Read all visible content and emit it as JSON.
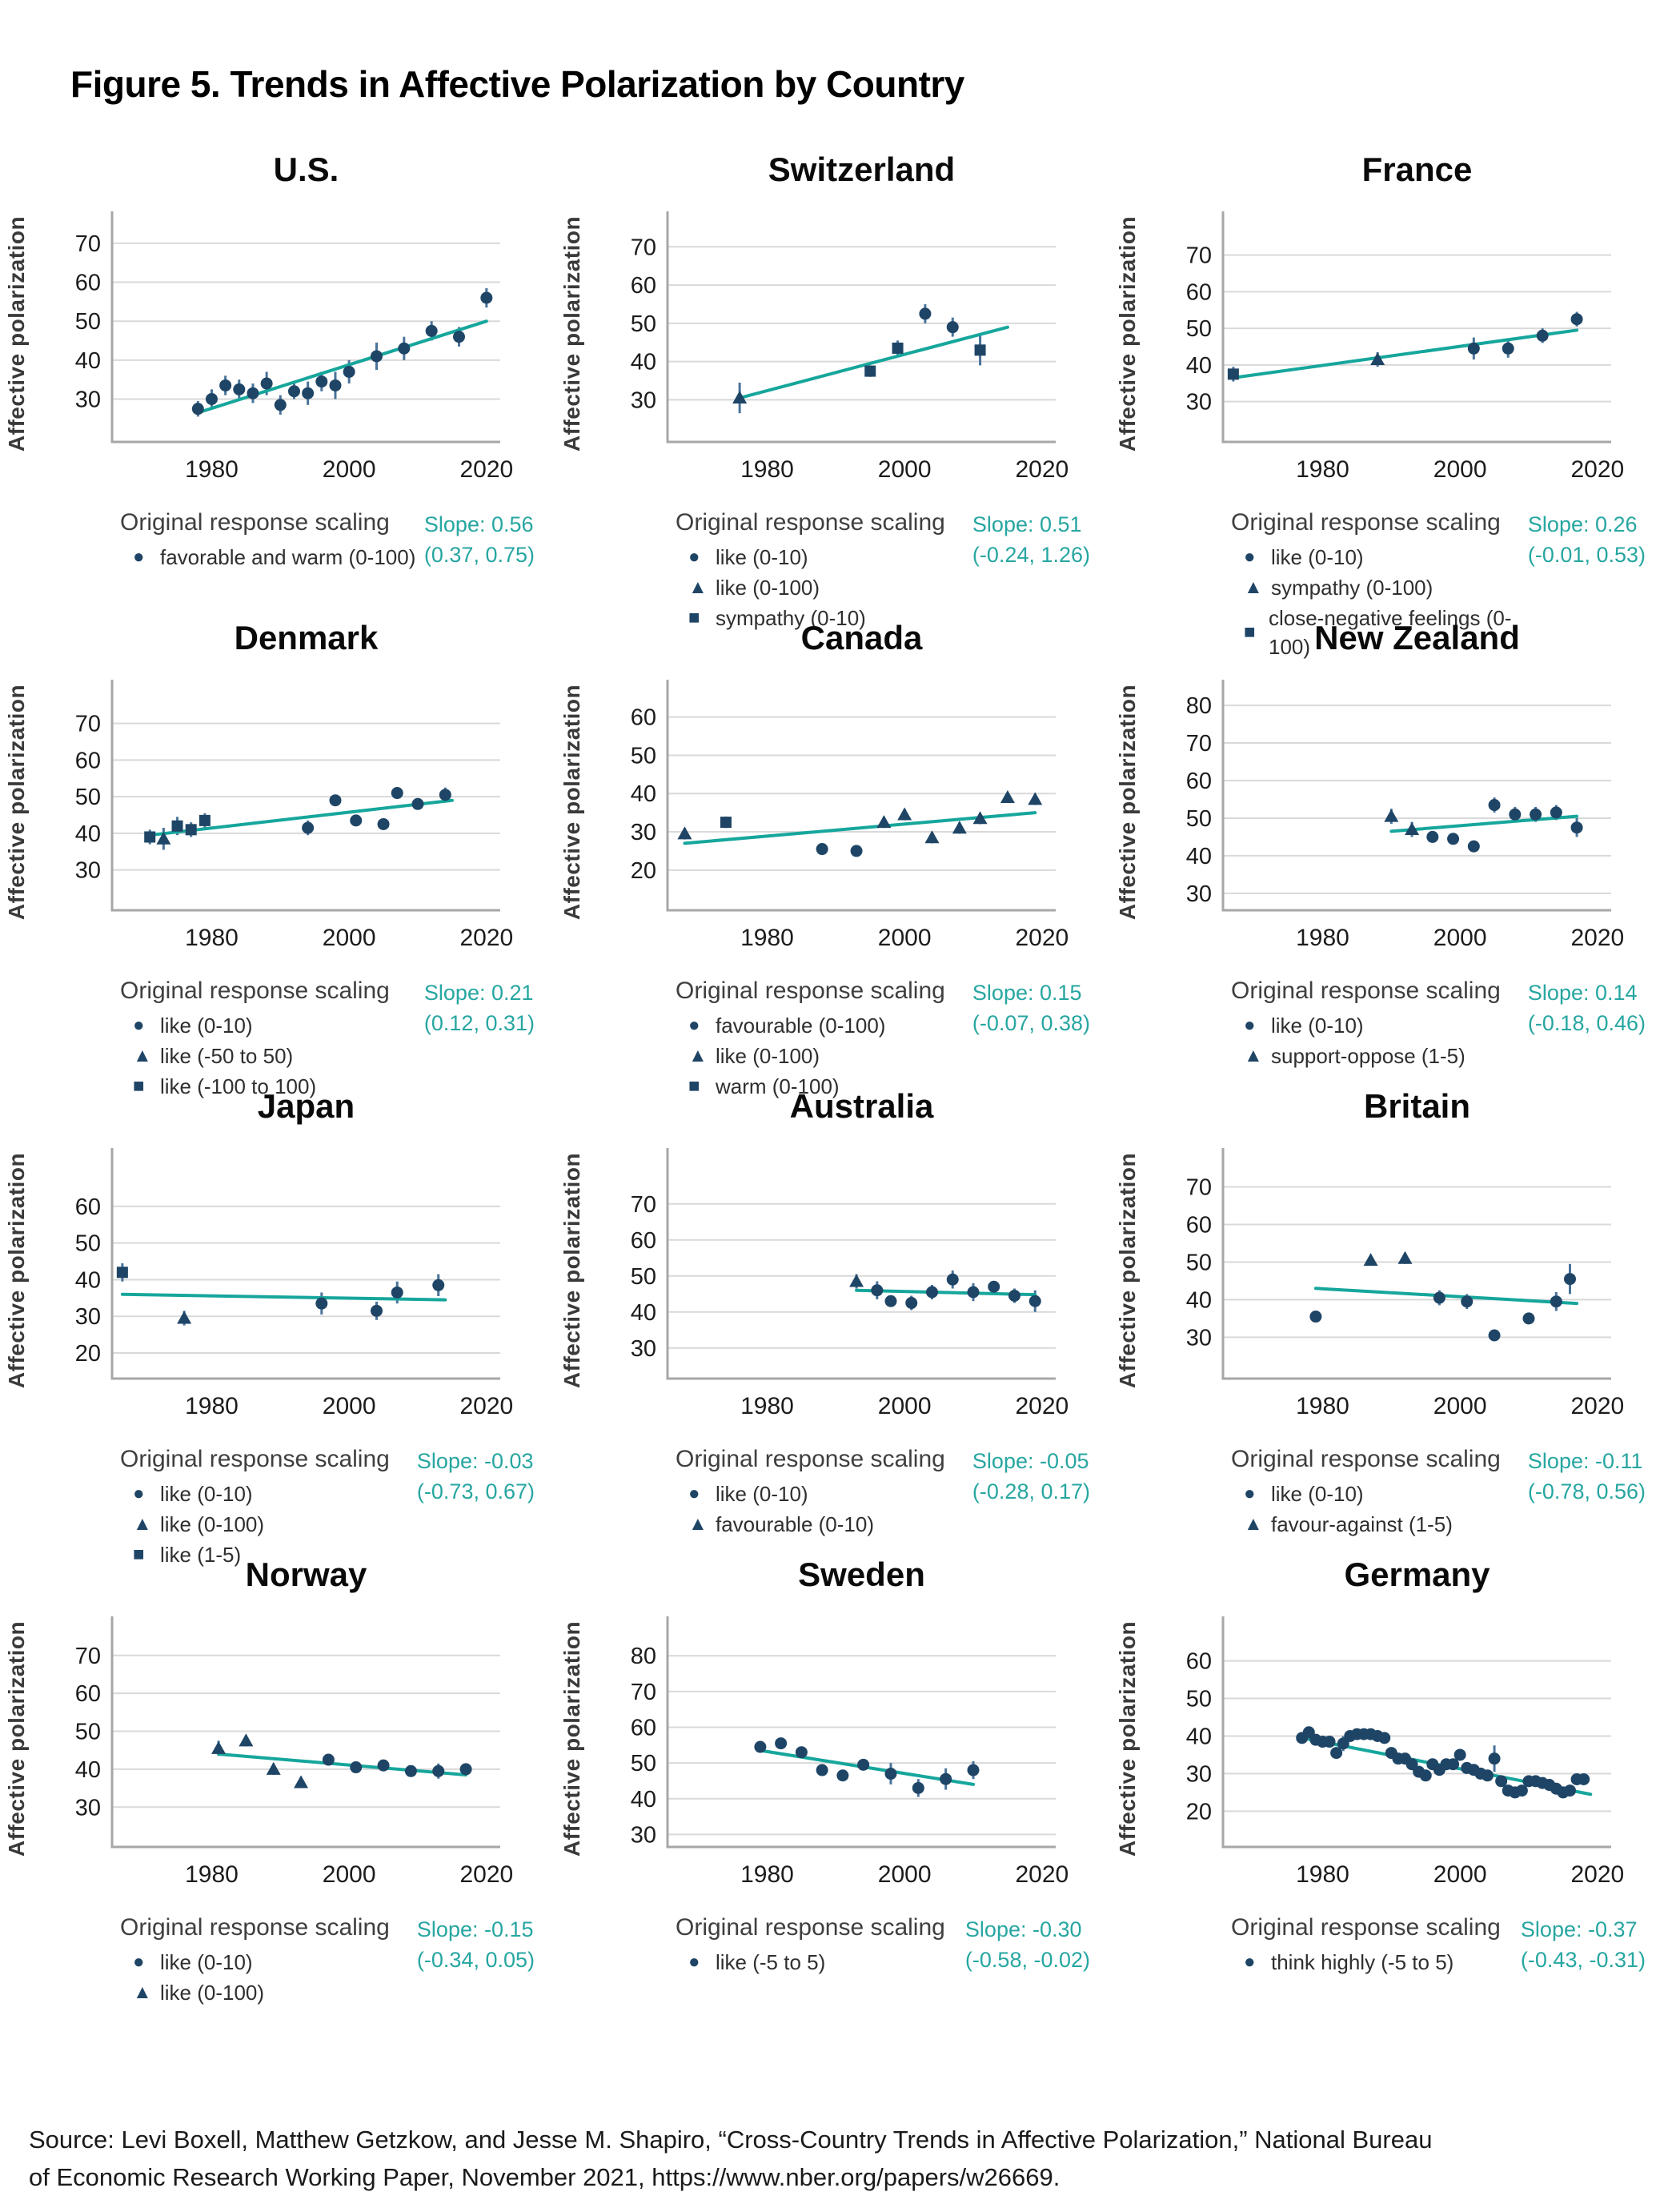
{
  "page": {
    "title": "Figure 5. Trends in Affective Polarization by Country",
    "source": [
      "Source: Levi Boxell, Matthew Getzkow, and Jesse M. Shapiro, “Cross-Country Trends in Affective Polarization,” National Bureau",
      "of Economic Research Working Paper, November 2021, https://www.nber.org/papers/w26669."
    ]
  },
  "colors": {
    "point_navy": "#1f4566",
    "error_bar": "#49739a",
    "trend_teal": "#16a69c",
    "slope_text": "#27a6a1",
    "gridline": "#d9d9d9",
    "spine": "#a7a7a7",
    "tick_text": "#1c1c1c"
  },
  "legend": {
    "heading": "Original response scaling",
    "glyphs": {
      "circle": "●",
      "triangle": "▲",
      "square": "■"
    }
  },
  "ylabel": "Affective polarization",
  "points_format": "[year, value, half_error, marker(default circle)]",
  "chart_data": [
    {
      "type": "scatter",
      "title": "U.S.",
      "xlim": [
        1965.5,
        2022
      ],
      "xticks": [
        1980,
        2000,
        2020
      ],
      "ylim": [
        19,
        74.5
      ],
      "yticks": [
        30,
        40,
        50,
        60,
        70
      ],
      "slope": "Slope: 0.56",
      "slope_ci": "(0.37, 0.75)",
      "trend": [
        1978,
        26.5,
        2020,
        50
      ],
      "legend": [
        {
          "marker": "circle",
          "label": "favorable and warm (0-100)"
        }
      ],
      "points": [
        [
          1978,
          27.5,
          2
        ],
        [
          1980,
          30,
          2.5
        ],
        [
          1982,
          33.5,
          2.5
        ],
        [
          1984,
          32.5,
          2.5
        ],
        [
          1986,
          31.5,
          2.5
        ],
        [
          1988,
          34,
          3
        ],
        [
          1990,
          28.5,
          2.5
        ],
        [
          1992,
          32,
          2
        ],
        [
          1994,
          31.5,
          3
        ],
        [
          1996,
          34.5,
          2.5
        ],
        [
          1998,
          33.5,
          3.5
        ],
        [
          2000,
          37,
          3
        ],
        [
          2004,
          41,
          3.5
        ],
        [
          2008,
          43,
          3
        ],
        [
          2012,
          47.5,
          2.5
        ],
        [
          2016,
          46,
          2.5
        ],
        [
          2020,
          56,
          2.5
        ]
      ]
    },
    {
      "type": "scatter",
      "title": "Switzerland",
      "xlim": [
        1965.5,
        2022
      ],
      "xticks": [
        1980,
        2000,
        2020
      ],
      "ylim": [
        19,
        75.5
      ],
      "yticks": [
        30,
        40,
        50,
        60,
        70
      ],
      "slope": "Slope: 0.51",
      "slope_ci": "(-0.24, 1.26)",
      "trend": [
        1976,
        30.5,
        2015,
        49
      ],
      "legend": [
        {
          "marker": "circle",
          "label": "like (0-10)"
        },
        {
          "marker": "triangle",
          "label": "like (0-100)"
        },
        {
          "marker": "square",
          "label": "sympathy (0-10)"
        }
      ],
      "points": [
        [
          1976,
          30.5,
          4,
          "triangle"
        ],
        [
          1995,
          37.5,
          1.5,
          "square"
        ],
        [
          1999,
          43.5,
          2,
          "square"
        ],
        [
          2003,
          52.5,
          2.5
        ],
        [
          2007,
          49,
          2.5
        ],
        [
          2011,
          43,
          4,
          "square"
        ]
      ]
    },
    {
      "type": "scatter",
      "title": "France",
      "xlim": [
        1965.5,
        2022
      ],
      "xticks": [
        1980,
        2000,
        2020
      ],
      "ylim": [
        19,
        78
      ],
      "yticks": [
        30,
        40,
        50,
        60,
        70
      ],
      "slope": "Slope: 0.26",
      "slope_ci": "(-0.01, 0.53)",
      "trend": [
        1967,
        36.5,
        2017,
        49.5
      ],
      "legend": [
        {
          "marker": "circle",
          "label": "like (0-10)"
        },
        {
          "marker": "triangle",
          "label": "sympathy (0-100)"
        },
        {
          "marker": "square",
          "label": "close-negative feelings (0-100)"
        }
      ],
      "points": [
        [
          1967,
          37.5,
          2,
          "square"
        ],
        [
          1988,
          41.5,
          2,
          "triangle"
        ],
        [
          2002,
          44.5,
          3
        ],
        [
          2007,
          44.5,
          2.5
        ],
        [
          2012,
          48,
          2
        ],
        [
          2017,
          52.5,
          2
        ]
      ]
    },
    {
      "type": "scatter",
      "title": "Denmark",
      "xlim": [
        1965.5,
        2022
      ],
      "xticks": [
        1980,
        2000,
        2020
      ],
      "ylim": [
        19,
        78
      ],
      "yticks": [
        30,
        40,
        50,
        60,
        70
      ],
      "slope": "Slope: 0.21",
      "slope_ci": "(0.12, 0.31)",
      "trend": [
        1971,
        39.5,
        2015,
        49
      ],
      "legend": [
        {
          "marker": "circle",
          "label": "like (0-10)"
        },
        {
          "marker": "triangle",
          "label": "like (-50 to 50)"
        },
        {
          "marker": "square",
          "label": "like (-100 to 100)"
        }
      ],
      "points": [
        [
          1971,
          39,
          2,
          "square"
        ],
        [
          1973,
          38.5,
          3,
          "triangle"
        ],
        [
          1975,
          42,
          2.5,
          "square"
        ],
        [
          1977,
          41,
          2,
          "square"
        ],
        [
          1979,
          43.5,
          2,
          "square"
        ],
        [
          1994,
          41.5,
          2
        ],
        [
          1998,
          49,
          1.5
        ],
        [
          2001,
          43.5,
          1.5
        ],
        [
          2005,
          42.5,
          1.5
        ],
        [
          2007,
          51,
          1
        ],
        [
          2010,
          48,
          1.5
        ],
        [
          2014,
          50.5,
          2
        ]
      ]
    },
    {
      "type": "scatter",
      "title": "Canada",
      "xlim": [
        1965.5,
        2022
      ],
      "xticks": [
        1980,
        2000,
        2020
      ],
      "ylim": [
        9.5,
        66
      ],
      "yticks": [
        20,
        30,
        40,
        50,
        60
      ],
      "slope": "Slope: 0.15",
      "slope_ci": "(-0.07, 0.38)",
      "trend": [
        1968,
        27,
        2019,
        35
      ],
      "legend": [
        {
          "marker": "circle",
          "label": "favourable (0-100)"
        },
        {
          "marker": "triangle",
          "label": "like (0-100)"
        },
        {
          "marker": "square",
          "label": "warm (0-100)"
        }
      ],
      "points": [
        [
          1968,
          29.5,
          1.5,
          "triangle"
        ],
        [
          1974,
          32.5,
          1.5,
          "square"
        ],
        [
          1988,
          25.5,
          1.5
        ],
        [
          1993,
          25,
          1
        ],
        [
          1997,
          32.5,
          1.5,
          "triangle"
        ],
        [
          2000,
          34.5,
          1.5,
          "triangle"
        ],
        [
          2004,
          28.5,
          1.5,
          "triangle"
        ],
        [
          2008,
          31,
          1.5,
          "triangle"
        ],
        [
          2011,
          33.5,
          1.5,
          "triangle"
        ],
        [
          2015,
          39,
          1,
          "triangle"
        ],
        [
          2019,
          38.5,
          1.5,
          "triangle"
        ]
      ]
    },
    {
      "type": "scatter",
      "title": "New Zealand",
      "xlim": [
        1965.5,
        2022
      ],
      "xticks": [
        1980,
        2000,
        2020
      ],
      "ylim": [
        25.5,
        83
      ],
      "yticks": [
        30,
        40,
        50,
        60,
        70,
        80
      ],
      "slope": "Slope: 0.14",
      "slope_ci": "(-0.18, 0.46)",
      "trend": [
        1990,
        46.5,
        2017,
        50.5
      ],
      "legend": [
        {
          "marker": "circle",
          "label": "like (0-10)"
        },
        {
          "marker": "triangle",
          "label": "support-oppose (1-5)"
        }
      ],
      "points": [
        [
          1990,
          50.5,
          2,
          "triangle"
        ],
        [
          1993,
          47,
          2,
          "triangle"
        ],
        [
          1996,
          45,
          1
        ],
        [
          1999,
          44.5,
          1
        ],
        [
          2002,
          42.5,
          1.5
        ],
        [
          2005,
          53.5,
          2
        ],
        [
          2008,
          51,
          2
        ],
        [
          2011,
          51,
          2
        ],
        [
          2014,
          51.5,
          2
        ],
        [
          2017,
          47.5,
          2.5
        ]
      ]
    },
    {
      "type": "scatter",
      "title": "Japan",
      "xlim": [
        1965.5,
        2022
      ],
      "xticks": [
        1980,
        2000,
        2020
      ],
      "ylim": [
        13,
        72
      ],
      "yticks": [
        20,
        30,
        40,
        50,
        60
      ],
      "slope": "Slope: -0.03",
      "slope_ci": "(-0.73, 0.67)",
      "trend": [
        1967,
        36,
        2014,
        34.5
      ],
      "legend": [
        {
          "marker": "circle",
          "label": "like (0-10)"
        },
        {
          "marker": "triangle",
          "label": "like (0-100)"
        },
        {
          "marker": "square",
          "label": "like (1-5)"
        }
      ],
      "points": [
        [
          1967,
          42,
          2.5,
          "square"
        ],
        [
          1976,
          29.5,
          2,
          "triangle"
        ],
        [
          1996,
          33.5,
          3
        ],
        [
          2004,
          31.5,
          2.5
        ],
        [
          2007,
          36.5,
          3
        ],
        [
          2013,
          38.5,
          3
        ]
      ]
    },
    {
      "type": "scatter",
      "title": "Australia",
      "xlim": [
        1965.5,
        2022
      ],
      "xticks": [
        1980,
        2000,
        2020
      ],
      "ylim": [
        21.5,
        81.5
      ],
      "yticks": [
        30,
        40,
        50,
        60,
        70
      ],
      "slope": "Slope: -0.05",
      "slope_ci": "(-0.28, 0.17)",
      "trend": [
        1993,
        46,
        2019,
        44.8
      ],
      "legend": [
        {
          "marker": "circle",
          "label": "like (0-10)"
        },
        {
          "marker": "triangle",
          "label": "favourable (0-10)"
        }
      ],
      "points": [
        [
          1993,
          48.5,
          2,
          "triangle"
        ],
        [
          1996,
          46,
          2.5
        ],
        [
          1998,
          43,
          1.5
        ],
        [
          2001,
          42.5,
          2
        ],
        [
          2004,
          45.5,
          2
        ],
        [
          2007,
          49,
          2.5
        ],
        [
          2010,
          45.5,
          2.5
        ],
        [
          2013,
          47,
          1.5
        ],
        [
          2016,
          44.5,
          2
        ],
        [
          2019,
          43,
          3
        ]
      ]
    },
    {
      "type": "scatter",
      "title": "Britain",
      "xlim": [
        1965.5,
        2022
      ],
      "xticks": [
        1980,
        2000,
        2020
      ],
      "ylim": [
        19,
        76.5
      ],
      "yticks": [
        30,
        40,
        50,
        60,
        70
      ],
      "slope": "Slope: -0.11",
      "slope_ci": "(-0.78, 0.56)",
      "trend": [
        1979,
        43,
        2017,
        39
      ],
      "legend": [
        {
          "marker": "circle",
          "label": "like (0-10)"
        },
        {
          "marker": "triangle",
          "label": "favour-against (1-5)"
        }
      ],
      "points": [
        [
          1979,
          35.5,
          1.5
        ],
        [
          1987,
          50.5,
          1,
          "triangle"
        ],
        [
          1992,
          51,
          1.5,
          "triangle"
        ],
        [
          1997,
          40.5,
          2
        ],
        [
          2001,
          39.5,
          2
        ],
        [
          2005,
          30.5,
          1.5
        ],
        [
          2010,
          35,
          1.5
        ],
        [
          2014,
          39.5,
          2.5
        ],
        [
          2016,
          45.5,
          4
        ]
      ]
    },
    {
      "type": "scatter",
      "title": "Norway",
      "xlim": [
        1965.5,
        2022
      ],
      "xticks": [
        1980,
        2000,
        2020
      ],
      "ylim": [
        19.5,
        76.5
      ],
      "yticks": [
        30,
        40,
        50,
        60,
        70
      ],
      "slope": "Slope: -0.15",
      "slope_ci": "(-0.34, 0.05)",
      "trend": [
        1981,
        44,
        2017,
        38.5
      ],
      "legend": [
        {
          "marker": "circle",
          "label": "like (0-10)"
        },
        {
          "marker": "triangle",
          "label": "like (0-100)"
        }
      ],
      "points": [
        [
          1981,
          45.5,
          2,
          "triangle"
        ],
        [
          1985,
          47.5,
          1.5,
          "triangle"
        ],
        [
          1989,
          40,
          1.5,
          "triangle"
        ],
        [
          1993,
          36.5,
          1.5,
          "triangle"
        ],
        [
          1997,
          42.5,
          1.5
        ],
        [
          2001,
          40.5,
          1.5
        ],
        [
          2005,
          41,
          1.5
        ],
        [
          2009,
          39.5,
          1.5
        ],
        [
          2013,
          39.5,
          2
        ],
        [
          2017,
          40,
          1.5
        ]
      ]
    },
    {
      "type": "scatter",
      "title": "Sweden",
      "xlim": [
        1965.5,
        2022
      ],
      "xticks": [
        1980,
        2000,
        2020
      ],
      "ylim": [
        26.5,
        87
      ],
      "yticks": [
        30,
        40,
        50,
        60,
        70,
        80
      ],
      "slope": "Slope: -0.30",
      "slope_ci": "(-0.58, -0.02)",
      "trend": [
        1979,
        53.5,
        2010,
        44
      ],
      "legend": [
        {
          "marker": "circle",
          "label": "like (-5 to 5)"
        }
      ],
      "points": [
        [
          1979,
          54.5,
          1.5
        ],
        [
          1982,
          55.5,
          1.5
        ],
        [
          1985,
          53,
          1.5
        ],
        [
          1988,
          48,
          1.5
        ],
        [
          1991,
          46.5,
          1.5
        ],
        [
          1994,
          49.5,
          1.5
        ],
        [
          1998,
          47,
          3
        ],
        [
          2002,
          43,
          2.5
        ],
        [
          2006,
          45.5,
          3
        ],
        [
          2010,
          48,
          2.5
        ]
      ]
    },
    {
      "type": "scatter",
      "title": "Germany",
      "xlim": [
        1965.5,
        2022
      ],
      "xticks": [
        1980,
        2000,
        2020
      ],
      "ylim": [
        10.5,
        68
      ],
      "yticks": [
        20,
        30,
        40,
        50,
        60
      ],
      "slope": "Slope: -0.37",
      "slope_ci": "(-0.43, -0.31)",
      "trend": [
        1977,
        39.5,
        2019,
        24.5
      ],
      "legend": [
        {
          "marker": "circle",
          "label": "think highly (-5 to 5)"
        }
      ],
      "points": [
        [
          1977,
          39.5,
          1
        ],
        [
          1978,
          41,
          1.5
        ],
        [
          1979,
          39,
          1
        ],
        [
          1980,
          38.5,
          1
        ],
        [
          1981,
          38.5,
          1
        ],
        [
          1982,
          35.5,
          1
        ],
        [
          1983,
          38,
          2
        ],
        [
          1984,
          40,
          1
        ],
        [
          1985,
          40.5,
          1
        ],
        [
          1986,
          40.5,
          1
        ],
        [
          1987,
          40.5,
          1
        ],
        [
          1988,
          40,
          1
        ],
        [
          1989,
          39.5,
          1
        ],
        [
          1990,
          35.5,
          1.5
        ],
        [
          1991,
          34,
          1
        ],
        [
          1992,
          34,
          1
        ],
        [
          1993,
          32.5,
          1
        ],
        [
          1994,
          30.5,
          1
        ],
        [
          1995,
          29.5,
          1
        ],
        [
          1996,
          32.5,
          1
        ],
        [
          1997,
          31,
          1
        ],
        [
          1998,
          32.5,
          1
        ],
        [
          1999,
          32.5,
          1
        ],
        [
          2000,
          35,
          1
        ],
        [
          2001,
          31.5,
          1
        ],
        [
          2002,
          31,
          1
        ],
        [
          2003,
          30,
          1
        ],
        [
          2004,
          29.5,
          1
        ],
        [
          2005,
          34,
          3.5
        ],
        [
          2006,
          28,
          1
        ],
        [
          2007,
          25.5,
          1
        ],
        [
          2008,
          25,
          1
        ],
        [
          2009,
          25.5,
          1
        ],
        [
          2010,
          28,
          1
        ],
        [
          2011,
          28,
          1
        ],
        [
          2012,
          27.5,
          1
        ],
        [
          2013,
          27,
          1
        ],
        [
          2014,
          26,
          1
        ],
        [
          2015,
          25,
          1
        ],
        [
          2016,
          25.5,
          1
        ],
        [
          2017,
          28.5,
          1
        ],
        [
          2018,
          28.5,
          1
        ]
      ]
    }
  ]
}
